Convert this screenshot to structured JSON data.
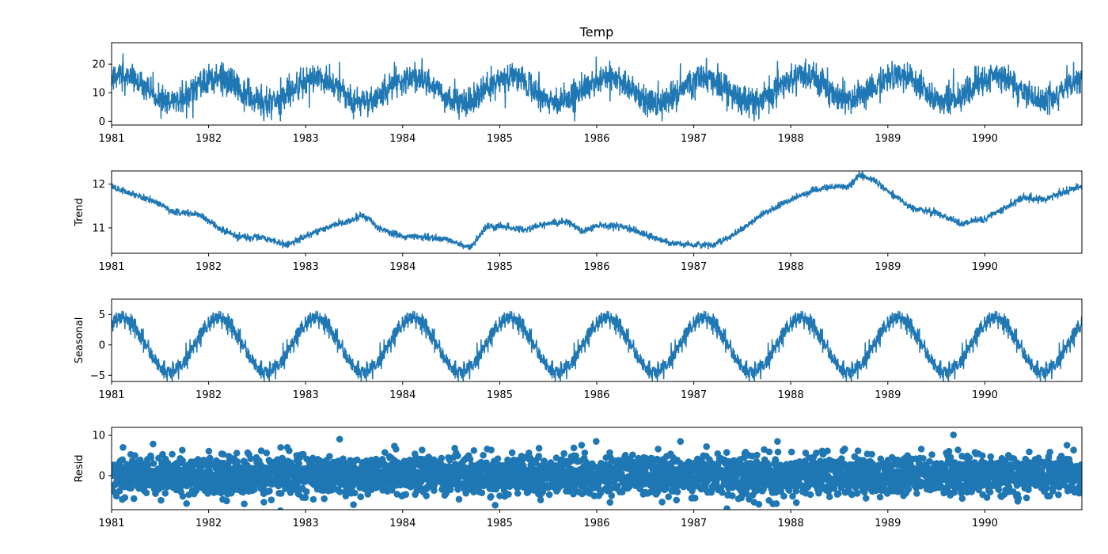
{
  "figure": {
    "title": "Temp",
    "line_color": "#1f77b4",
    "frame_color": "#000000"
  },
  "chart_data": [
    {
      "type": "line",
      "name": "observed",
      "title": "Temp",
      "ylabel": "",
      "xlim": [
        1981.0,
        1991.0
      ],
      "ylim": [
        -1.3,
        27.5
      ],
      "x_ticks": [
        1981,
        1982,
        1983,
        1984,
        1985,
        1986,
        1987,
        1988,
        1989,
        1990
      ],
      "x_tick_labels": [
        "1981",
        "1982",
        "1983",
        "1984",
        "1985",
        "1986",
        "1987",
        "1988",
        "1989",
        "1990"
      ],
      "y_ticks": [
        0,
        10,
        20
      ],
      "y_tick_labels": [
        "0",
        "10",
        "20"
      ],
      "x_start": 1981.0,
      "x_end": 1990.997,
      "n_points": 3650,
      "trend_knots": [
        [
          1981.0,
          11.95
        ],
        [
          1981.5,
          11.55
        ],
        [
          1981.6,
          11.4
        ],
        [
          1981.9,
          11.3
        ],
        [
          1982.1,
          11.0
        ],
        [
          1982.3,
          10.8
        ],
        [
          1982.55,
          10.78
        ],
        [
          1982.8,
          10.6
        ],
        [
          1983.0,
          10.8
        ],
        [
          1983.25,
          11.05
        ],
        [
          1983.5,
          11.2
        ],
        [
          1983.6,
          11.3
        ],
        [
          1983.75,
          11.0
        ],
        [
          1984.0,
          10.8
        ],
        [
          1984.3,
          10.78
        ],
        [
          1984.5,
          10.7
        ],
        [
          1984.7,
          10.55
        ],
        [
          1984.85,
          11.0
        ],
        [
          1985.0,
          11.05
        ],
        [
          1985.25,
          10.95
        ],
        [
          1985.5,
          11.1
        ],
        [
          1985.7,
          11.15
        ],
        [
          1985.85,
          10.9
        ],
        [
          1986.0,
          11.05
        ],
        [
          1986.25,
          11.05
        ],
        [
          1986.5,
          10.85
        ],
        [
          1986.75,
          10.65
        ],
        [
          1987.0,
          10.6
        ],
        [
          1987.2,
          10.6
        ],
        [
          1987.45,
          10.9
        ],
        [
          1987.7,
          11.3
        ],
        [
          1988.0,
          11.65
        ],
        [
          1988.3,
          11.9
        ],
        [
          1988.6,
          11.95
        ],
        [
          1988.7,
          12.2
        ],
        [
          1988.85,
          12.1
        ],
        [
          1989.0,
          11.85
        ],
        [
          1989.25,
          11.45
        ],
        [
          1989.5,
          11.35
        ],
        [
          1989.75,
          11.1
        ],
        [
          1990.0,
          11.2
        ],
        [
          1990.2,
          11.45
        ],
        [
          1990.4,
          11.7
        ],
        [
          1990.6,
          11.65
        ],
        [
          1991.0,
          11.95
        ]
      ],
      "seasonal_mean": 0.0,
      "seasonal_amplitude": 4.4,
      "seasonal_peak_phase": 0.1,
      "seasonal_noise": 0.8,
      "resid_sd": 2.4,
      "mark": "line"
    },
    {
      "type": "line",
      "name": "trend",
      "ylabel": "Trend",
      "xlim": [
        1981.0,
        1991.0
      ],
      "ylim": [
        10.42,
        12.3
      ],
      "x_ticks": [
        1981,
        1982,
        1983,
        1984,
        1985,
        1986,
        1987,
        1988,
        1989,
        1990
      ],
      "x_tick_labels": [
        "1981",
        "1982",
        "1983",
        "1984",
        "1985",
        "1986",
        "1987",
        "1988",
        "1989",
        "1990"
      ],
      "y_ticks": [
        11,
        12
      ],
      "y_tick_labels": [
        "11",
        "12"
      ],
      "mark": "line"
    },
    {
      "type": "line",
      "name": "seasonal",
      "ylabel": "Seasonal",
      "xlim": [
        1981.0,
        1991.0
      ],
      "ylim": [
        -6.0,
        7.5
      ],
      "x_ticks": [
        1981,
        1982,
        1983,
        1984,
        1985,
        1986,
        1987,
        1988,
        1989,
        1990
      ],
      "x_tick_labels": [
        "1981",
        "1982",
        "1983",
        "1984",
        "1985",
        "1986",
        "1987",
        "1988",
        "1989",
        "1990"
      ],
      "y_ticks": [
        -5,
        0,
        5
      ],
      "y_tick_labels": [
        "−5",
        "0",
        "5"
      ],
      "mark": "line"
    },
    {
      "type": "scatter",
      "name": "resid",
      "ylabel": "Resid",
      "xlim": [
        1981.0,
        1991.0
      ],
      "ylim": [
        -8.5,
        12.0
      ],
      "x_ticks": [
        1981,
        1982,
        1983,
        1984,
        1985,
        1986,
        1987,
        1988,
        1989,
        1990
      ],
      "x_tick_labels": [
        "1981",
        "1982",
        "1983",
        "1984",
        "1985",
        "1986",
        "1987",
        "1988",
        "1989",
        "1990"
      ],
      "y_ticks": [
        0,
        10
      ],
      "y_tick_labels": [
        "0",
        "10"
      ],
      "mark": "dot"
    }
  ]
}
